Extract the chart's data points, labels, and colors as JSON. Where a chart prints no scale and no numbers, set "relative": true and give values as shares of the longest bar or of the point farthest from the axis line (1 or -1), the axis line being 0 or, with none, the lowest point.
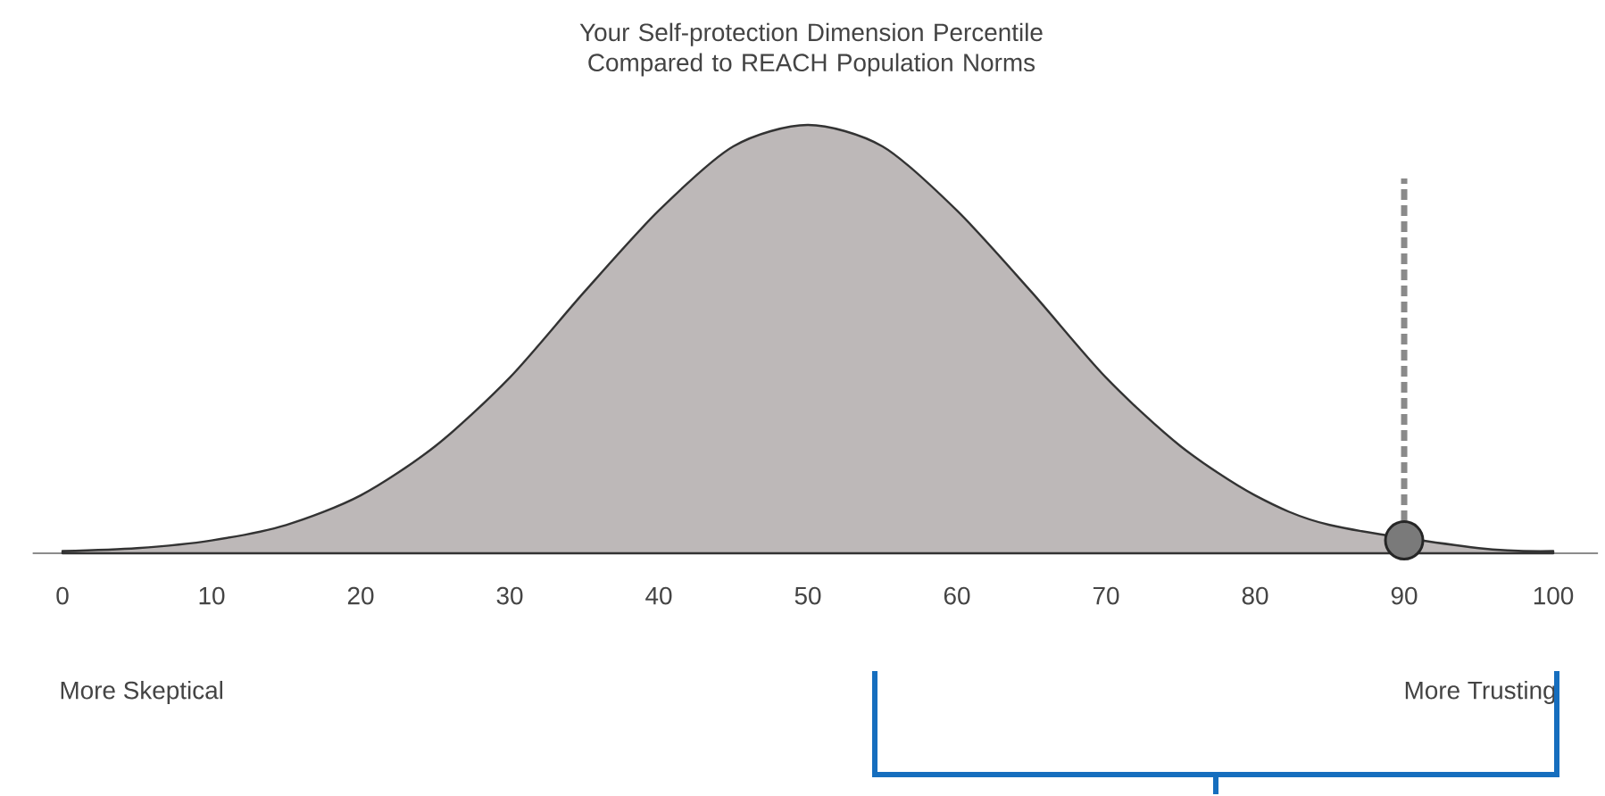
{
  "chart_data": {
    "type": "area",
    "title": "Your Self-protection Dimension Percentile Compared to REACH Population Norms",
    "x": [
      0,
      5,
      10,
      15,
      20,
      25,
      30,
      35,
      40,
      45,
      50,
      55,
      60,
      65,
      70,
      75,
      80,
      85,
      95,
      100
    ],
    "relative": true,
    "series": [
      {
        "color": "#bdb8b8",
        "values": [
          0.005,
          0.012,
          0.03,
          0.066,
          0.135,
          0.25,
          0.41,
          0.61,
          0.8,
          0.95,
          1,
          0.95,
          0.8,
          0.61,
          0.41,
          0.25,
          0.135,
          0.066,
          0.012,
          0.005
        ]
      },
      {
        "type": "scatter",
        "color": "#7a7a7a",
        "marker": "circle",
        "x": [
          90
        ],
        "values": [
          0.03
        ]
      }
    ],
    "xlim": [
      -2,
      103
    ],
    "xticks": [
      0,
      10,
      20,
      30,
      40,
      50,
      60,
      70,
      80,
      90,
      100
    ],
    "tick_labels": "x",
    "ref_lines": [
      {
        "axis": "x",
        "value": 90,
        "color": "#8a8a8a",
        "line_style": "dashed"
      }
    ],
    "annotations": [
      "More Skeptical",
      "More Trusting"
    ],
    "grid": false
  }
}
